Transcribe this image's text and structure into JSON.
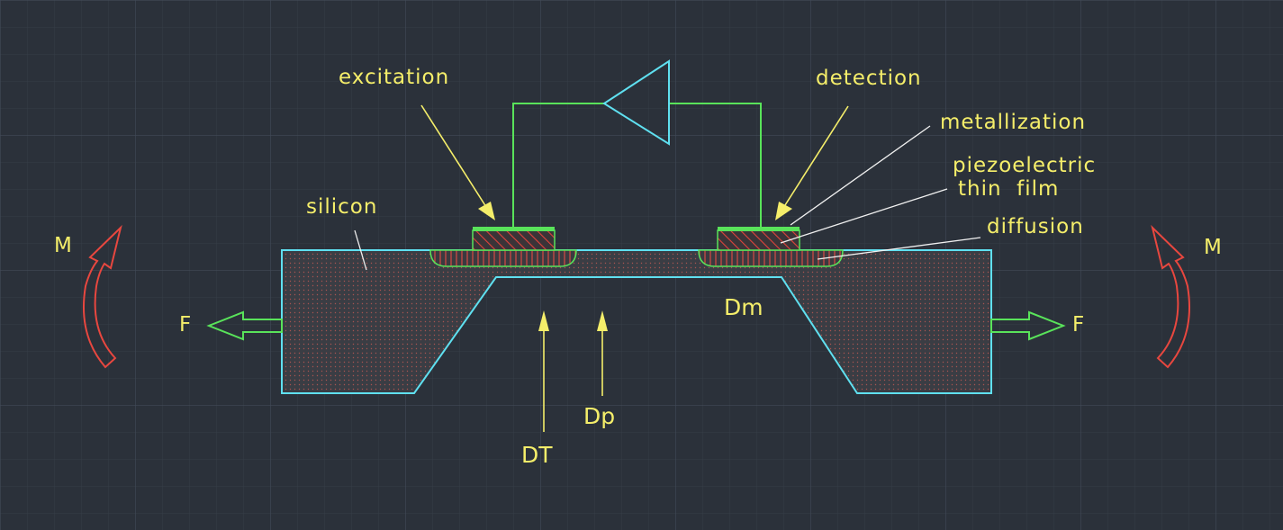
{
  "labels": {
    "excitation": "excitation",
    "detection": "detection",
    "metallization": "metallization",
    "piezo_line1": "piezoelectric",
    "piezo_line2": "thin  film",
    "diffusion": "diffusion",
    "silicon": "silicon",
    "moment_left": "M",
    "moment_right": "M",
    "force_left": "F",
    "force_right": "F",
    "dm": "Dm",
    "dt": "DT",
    "dp": "Dp"
  },
  "colors": {
    "background": "#2b313a",
    "grid_minor": "#363d47",
    "grid_major": "#404855",
    "label_yellow": "#f5ee6a",
    "outline_cyan": "#5fe0f0",
    "circuit_green": "#59e35a",
    "hatch_red": "#e0433a",
    "moment_red": "#e8473f",
    "leader_white": "#f0f0f0"
  },
  "icons": {
    "amplifier": "triangle-amplifier-icon",
    "moment": "curved-arrow-icon",
    "force": "hollow-arrow-icon"
  }
}
